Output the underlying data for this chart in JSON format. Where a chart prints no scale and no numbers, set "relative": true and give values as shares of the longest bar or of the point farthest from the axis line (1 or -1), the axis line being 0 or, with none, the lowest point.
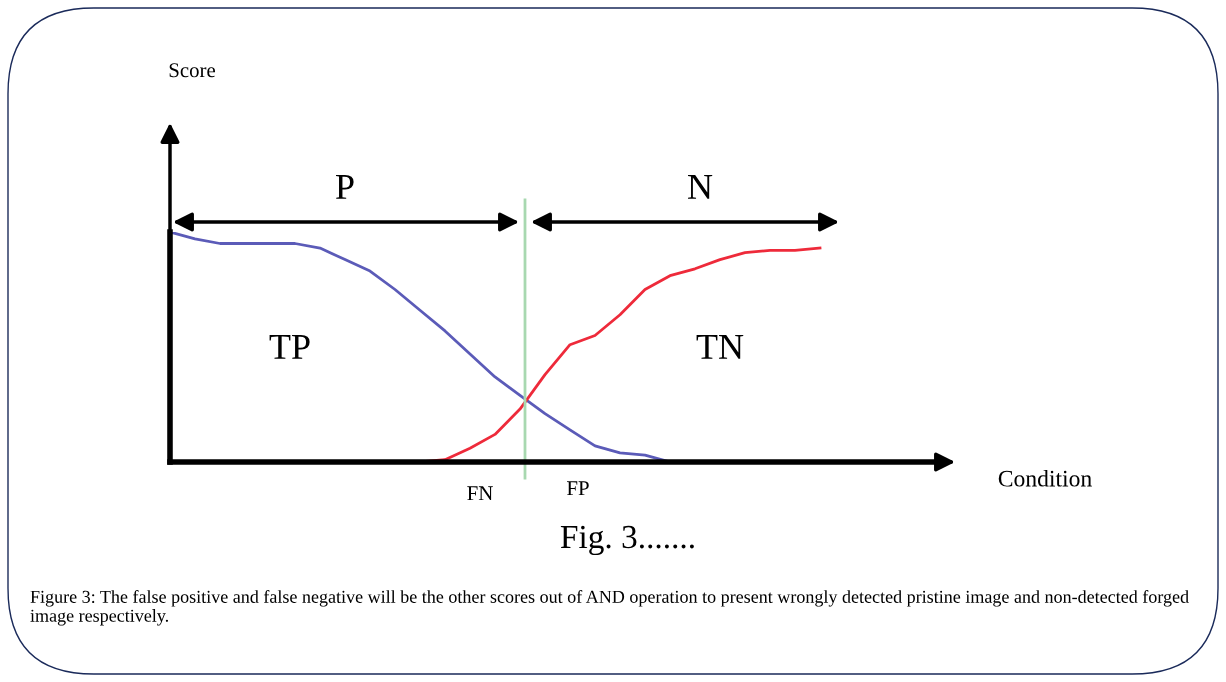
{
  "chart_data": {
    "type": "line",
    "relative": true,
    "xlabel": "Condition",
    "categories": [
      null,
      null,
      null,
      null,
      null,
      null,
      null,
      null,
      null,
      null,
      null,
      null,
      null,
      null,
      null,
      null,
      null,
      null,
      null,
      null,
      null,
      null,
      null,
      null,
      null,
      null,
      null,
      null,
      null,
      null,
      null,
      null
    ],
    "series": [
      {
        "color": "#5b5bb8",
        "values": [
          1,
          0.97,
          0.95,
          0.95,
          0.95,
          0.95,
          0.93,
          0.88,
          0.83,
          0.75,
          0.66,
          0.57,
          0.47,
          0.37,
          0.29,
          0.21,
          0.14,
          0.07,
          0.04,
          0.03,
          0,
          null,
          null,
          null,
          null,
          null,
          null,
          null,
          null,
          null,
          null,
          null
        ]
      },
      {
        "color": "#ee2a3a",
        "values": [
          null,
          null,
          null,
          null,
          null,
          null,
          null,
          null,
          null,
          null,
          0,
          0.01,
          0.06,
          0.12,
          0.23,
          0.38,
          0.51,
          0.55,
          0.64,
          0.75,
          0.81,
          0.84,
          0.88,
          0.91,
          0.92,
          0.92,
          0.93,
          null,
          null,
          null,
          null,
          null
        ]
      }
    ],
    "annotations": [
      "Score",
      "P",
      "N",
      "TP",
      "TN",
      "FN",
      "FP",
      "Fig. 3.......",
      "Figure 3: The false positive and false negative will be the other scores out of AND operation to present wrongly detected pristine image and non-detected forged image respectively."
    ]
  }
}
